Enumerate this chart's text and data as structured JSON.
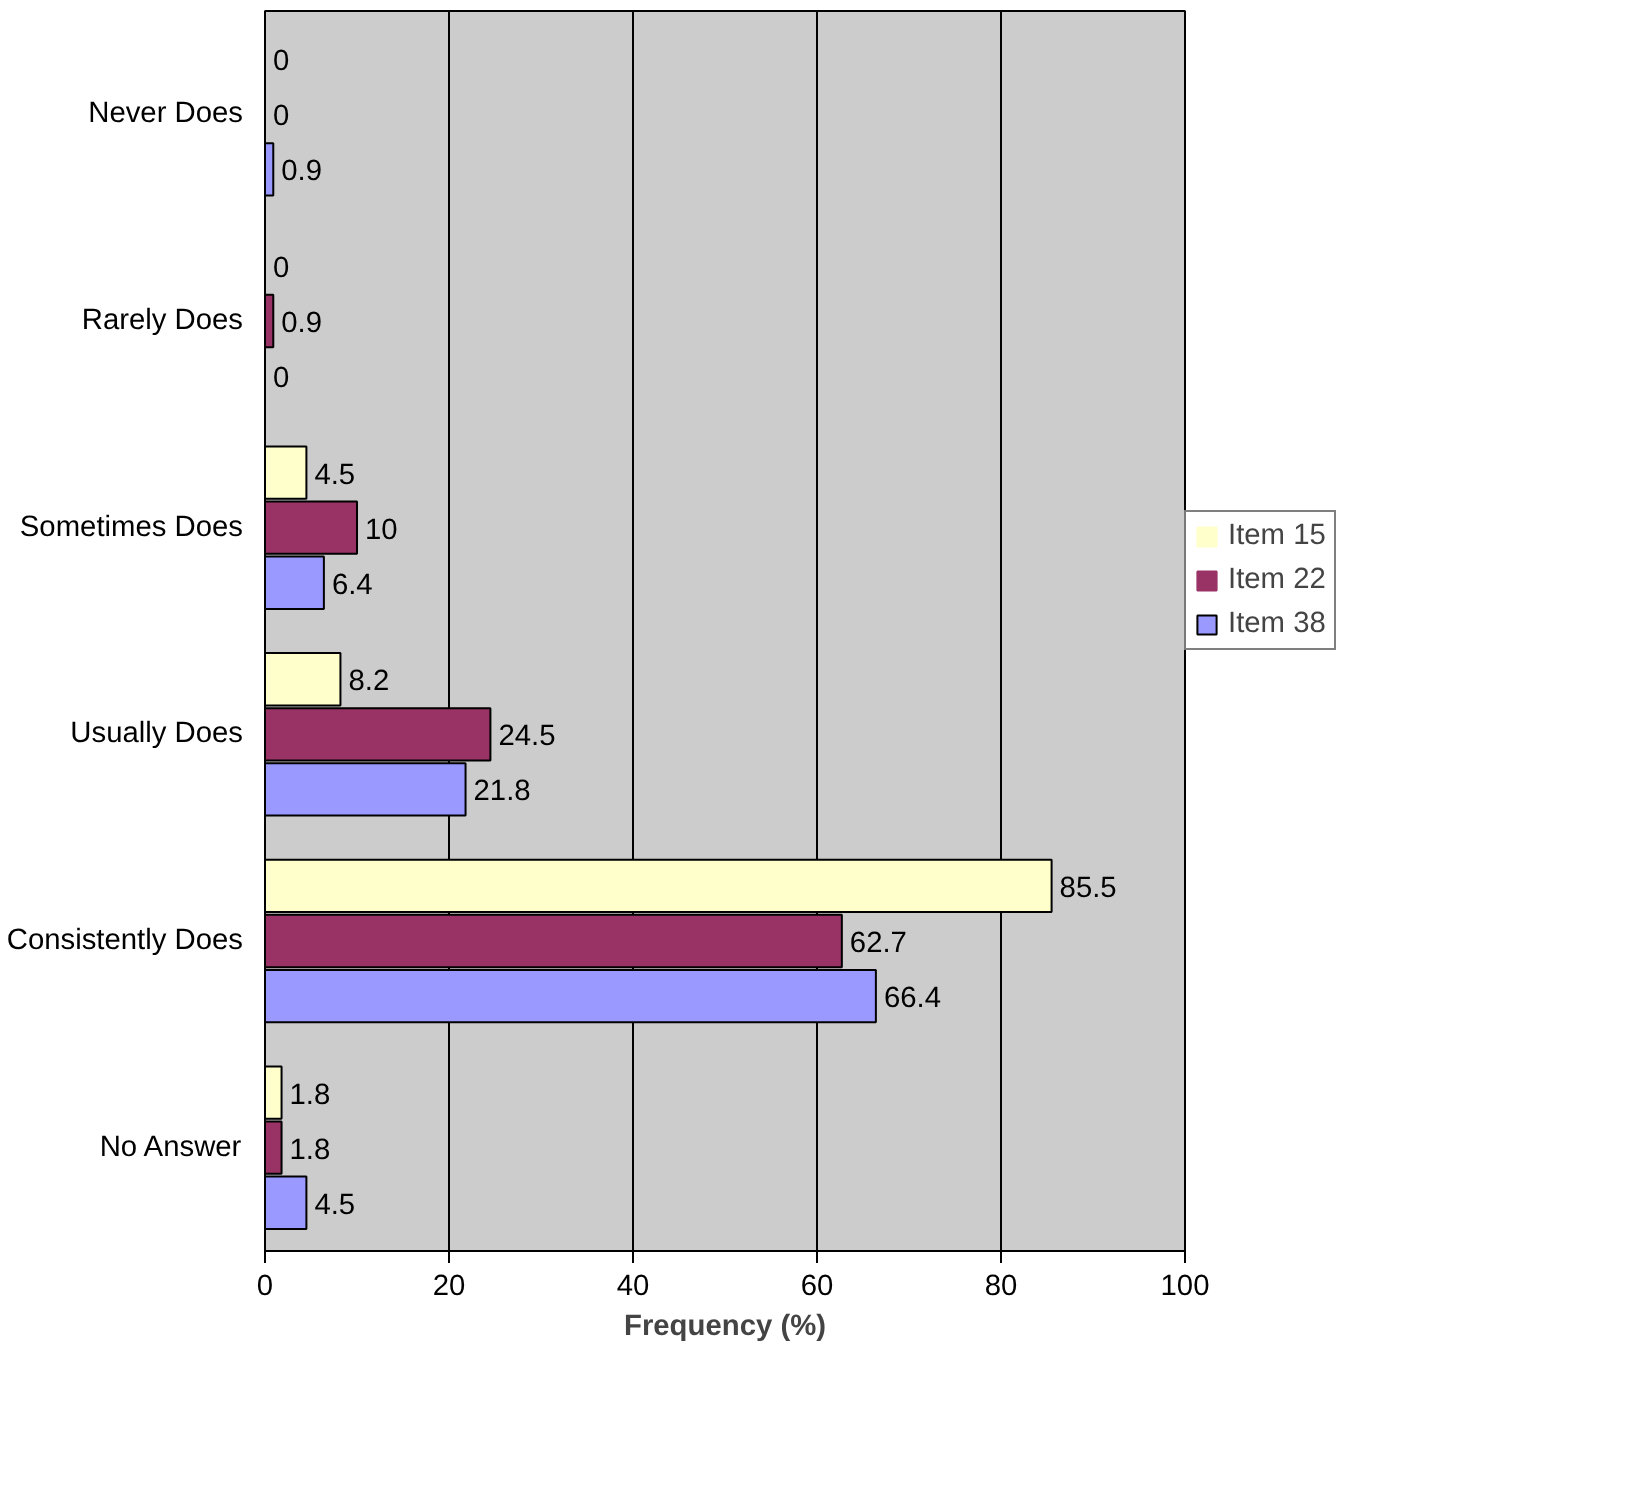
{
  "chart_data": {
    "type": "bar",
    "orientation": "horizontal",
    "xlabel": "Frequency (%)",
    "categories": [
      "Never Does",
      "Rarely Does",
      "Sometimes Does",
      "Usually Does",
      "Consistently Does",
      "No Answer"
    ],
    "series": [
      {
        "name": "Item 15",
        "color": "#ffffcc",
        "values": [
          0,
          0,
          4.5,
          8.2,
          85.5,
          1.8
        ]
      },
      {
        "name": "Item 22",
        "color": "#993366",
        "values": [
          0,
          0.9,
          10,
          24.5,
          62.7,
          1.8
        ]
      },
      {
        "name": "Item 38",
        "color": "#9999ff",
        "values": [
          0.9,
          0,
          6.4,
          21.8,
          66.4,
          4.5
        ]
      }
    ],
    "xlim": [
      0,
      100
    ],
    "xticks": [
      0,
      20,
      40,
      60,
      80,
      100
    ],
    "grid": "x",
    "legend": "right",
    "data_labels": true
  }
}
